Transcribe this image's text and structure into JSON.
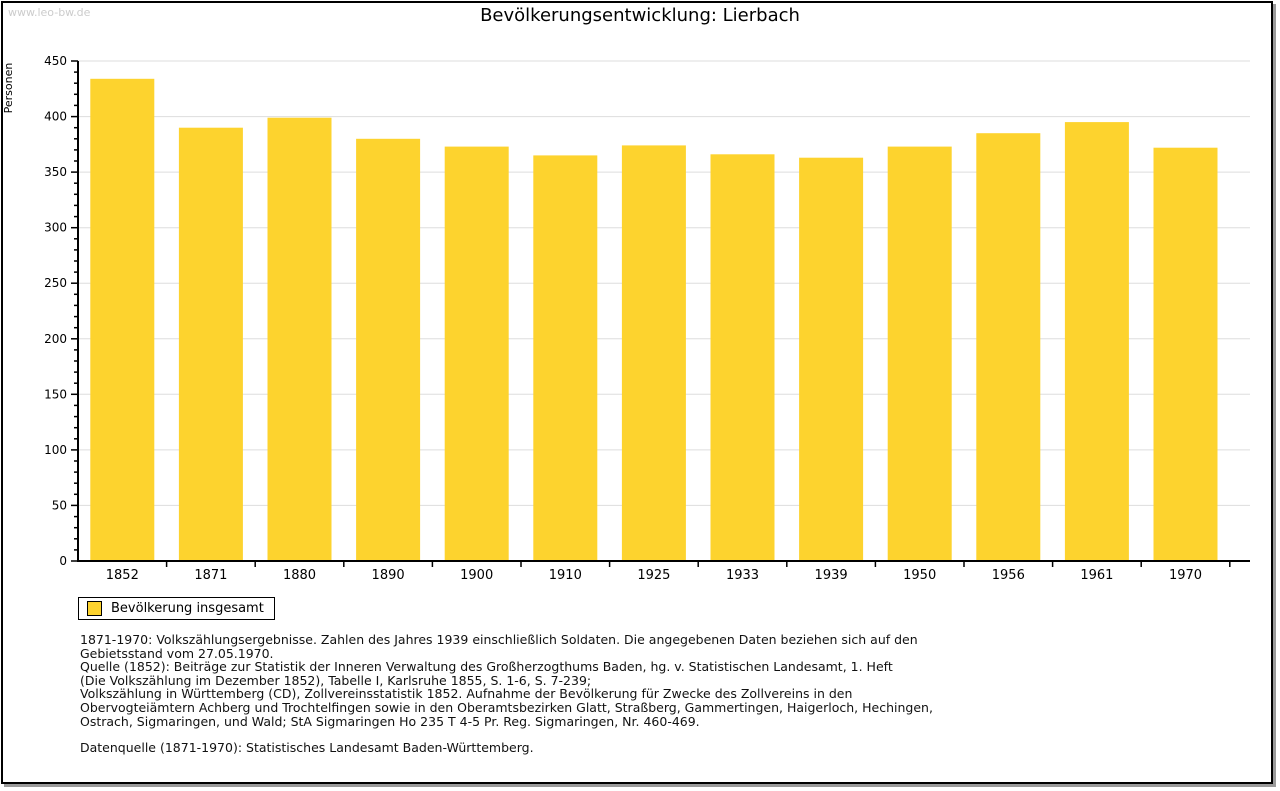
{
  "watermark": "www.leo-bw.de",
  "header": {
    "title": "Bevölkerungsentwicklung: Lierbach"
  },
  "chart_data": {
    "type": "bar",
    "title": "Bevölkerungsentwicklung: Lierbach",
    "categories": [
      "1852",
      "1871",
      "1880",
      "1890",
      "1900",
      "1910",
      "1925",
      "1933",
      "1939",
      "1950",
      "1956",
      "1961",
      "1970"
    ],
    "values": [
      434,
      390,
      399,
      380,
      373,
      365,
      374,
      366,
      363,
      373,
      385,
      395,
      372
    ],
    "series_name": "Bevölkerung insgesamt",
    "xlabel": "",
    "ylabel": "Personen",
    "ylim": [
      0,
      450
    ],
    "ytick_step": 50,
    "ytick_minor_step": 10,
    "grid": "horizontal-major",
    "legend_position": "bottom-left",
    "bar_color": "#fdd32e"
  },
  "legend": {
    "label": "Bevölkerung insgesamt",
    "swatch_color": "#fdd32e"
  },
  "footnotes": {
    "lines": [
      "1871-1970: Volkszählungsergebnisse. Zahlen des Jahres 1939 einschließlich Soldaten. Die angegebenen Daten beziehen sich auf den",
      "Gebietsstand vom 27.05.1970.",
      "Quelle (1852): Beiträge zur Statistik der Inneren Verwaltung des Großherzogthums Baden, hg. v. Statistischen Landesamt, 1. Heft",
      "(Die Volkszählung im Dezember 1852), Tabelle I, Karlsruhe 1855, S. 1-6, S. 7-239;",
      "Volkszählung in Württemberg (CD), Zollvereinsstatistik 1852. Aufnahme der Bevölkerung für Zwecke des Zollvereins in den",
      "Obervogteiämtern Achberg und Trochtelfingen sowie in den Oberamtsbezirken Glatt, Straßberg, Gammertingen, Haigerloch, Hechingen,",
      "Ostrach, Sigmaringen, und Wald; StA Sigmaringen Ho 235 T 4-5 Pr. Reg. Sigmaringen, Nr. 460-469."
    ],
    "datasource": "Datenquelle (1871-1970): Statistisches Landesamt Baden-Württemberg."
  },
  "colors": {
    "bar": "#fdd32e",
    "grid": "#dddddd",
    "axis": "#000000",
    "watermark": "#cccccc"
  }
}
